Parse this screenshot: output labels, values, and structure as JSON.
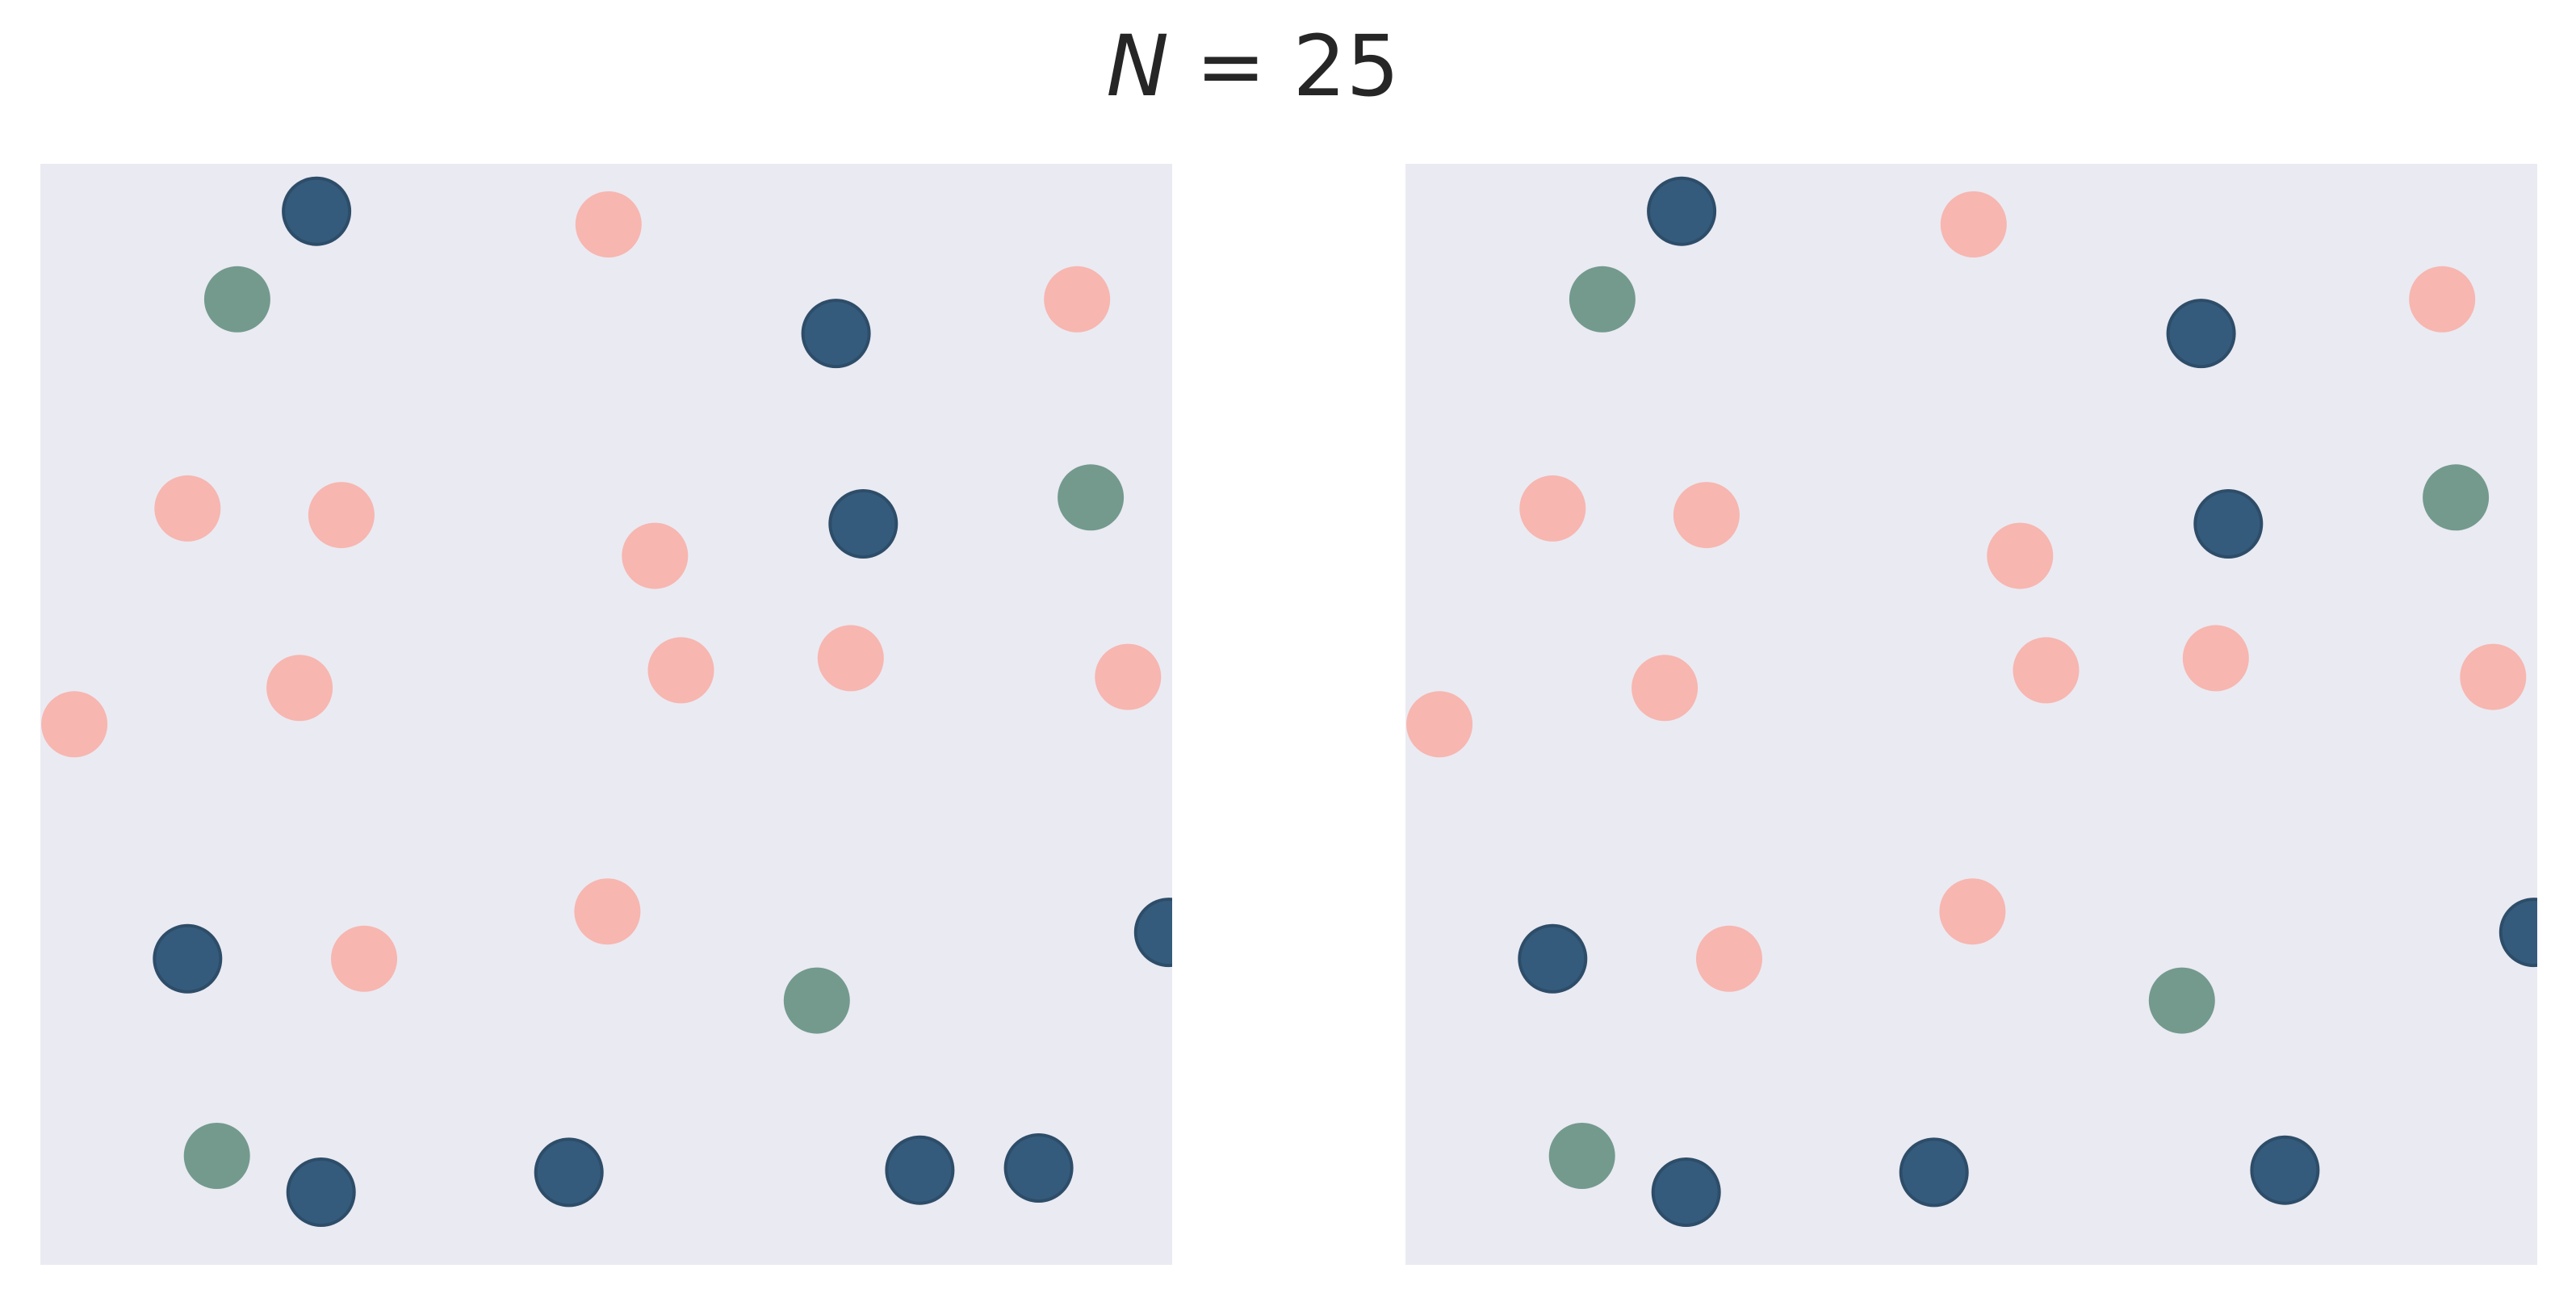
{
  "chart_data": [
    {
      "type": "scatter",
      "title_lhs": "N",
      "title_op": " = ",
      "title_rhs": "25",
      "xlim": [
        0,
        1
      ],
      "ylim": [
        0,
        1
      ],
      "grid": false,
      "series": [
        {
          "group": "pink",
          "color": "#f7b6b0",
          "x": [
            0.502,
            0.916,
            0.13,
            0.266,
            0.543,
            0.229,
            0.566,
            0.716,
            0.961,
            0.03,
            0.501,
            0.286
          ],
          "y": [
            0.945,
            0.877,
            0.687,
            0.681,
            0.644,
            0.524,
            0.54,
            0.551,
            0.534,
            0.491,
            0.321,
            0.278
          ]
        },
        {
          "group": "green",
          "color": "#739a8d",
          "x": [
            0.174,
            0.928,
            0.686,
            0.156
          ],
          "y": [
            0.877,
            0.697,
            0.24,
            0.099
          ]
        },
        {
          "group": "navy",
          "color": "#355b7c",
          "x": [
            0.244,
            0.703,
            0.727,
            0.13,
            0.997,
            0.248,
            0.467,
            0.777,
            0.882
          ],
          "y": [
            0.957,
            0.846,
            0.673,
            0.278,
            0.302,
            0.066,
            0.084,
            0.086,
            0.088
          ]
        }
      ]
    },
    {
      "type": "scatter",
      "xlim": [
        0,
        1
      ],
      "ylim": [
        0,
        1
      ],
      "grid": false,
      "series": [
        {
          "group": "pink",
          "color": "#f7b6b0",
          "x": [
            0.502,
            0.916,
            0.13,
            0.266,
            0.543,
            0.229,
            0.566,
            0.716,
            0.961,
            0.03,
            0.501,
            0.286
          ],
          "y": [
            0.945,
            0.877,
            0.687,
            0.681,
            0.644,
            0.524,
            0.54,
            0.551,
            0.534,
            0.491,
            0.321,
            0.278
          ]
        },
        {
          "group": "green",
          "color": "#739a8d",
          "x": [
            0.174,
            0.928,
            0.686,
            0.156
          ],
          "y": [
            0.877,
            0.697,
            0.24,
            0.099
          ]
        },
        {
          "group": "navy",
          "color": "#355b7c",
          "x": [
            0.244,
            0.703,
            0.727,
            0.13,
            0.997,
            0.248,
            0.467,
            0.777
          ],
          "y": [
            0.957,
            0.846,
            0.673,
            0.278,
            0.302,
            0.066,
            0.084,
            0.086
          ]
        }
      ]
    }
  ]
}
